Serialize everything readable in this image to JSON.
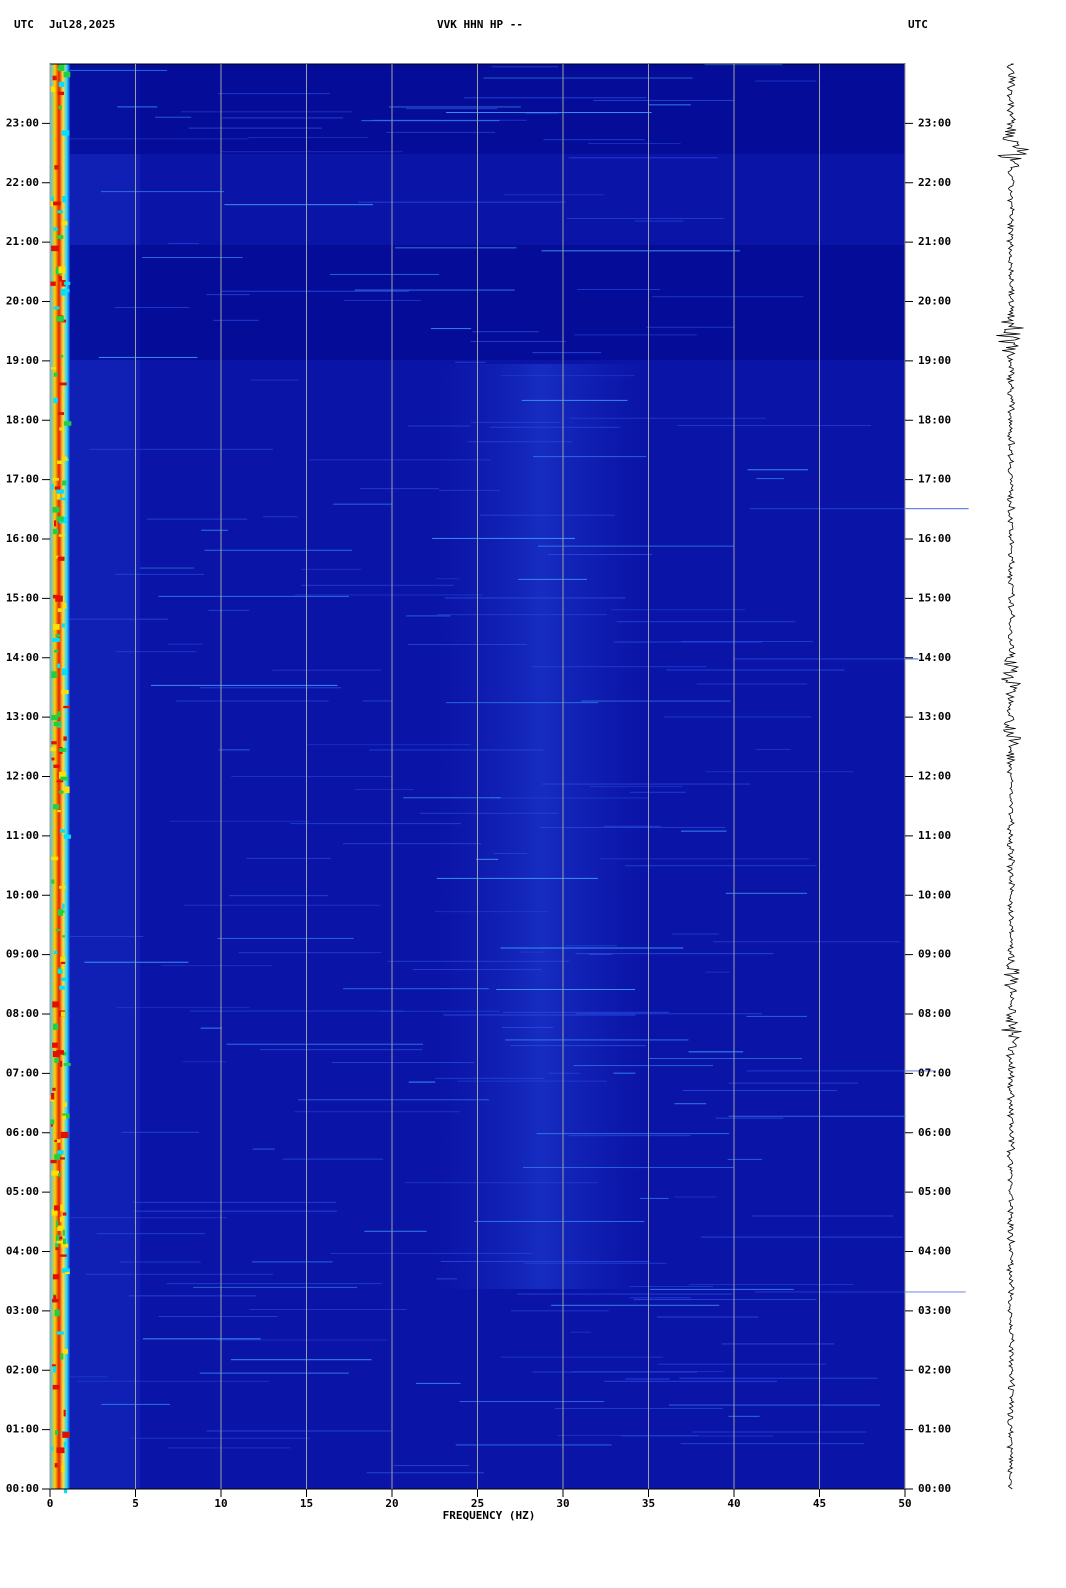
{
  "chart_data": {
    "type": "spectrogram",
    "title": "VVK HHN HP --",
    "left_header": "UTC",
    "date": "Jul28,2025",
    "right_header": "UTC",
    "xlabel": "FREQUENCY (HZ)",
    "xlim": [
      0,
      50
    ],
    "xticks": [
      0,
      5,
      10,
      15,
      20,
      25,
      30,
      35,
      40,
      45,
      50
    ],
    "ylim": [
      0,
      24
    ],
    "yticks": [
      {
        "value": 0,
        "label": "00:00"
      },
      {
        "value": 1,
        "label": "01:00"
      },
      {
        "value": 2,
        "label": "02:00"
      },
      {
        "value": 3,
        "label": "03:00"
      },
      {
        "value": 4,
        "label": "04:00"
      },
      {
        "value": 5,
        "label": "05:00"
      },
      {
        "value": 6,
        "label": "06:00"
      },
      {
        "value": 7,
        "label": "07:00"
      },
      {
        "value": 8,
        "label": "08:00"
      },
      {
        "value": 9,
        "label": "09:00"
      },
      {
        "value": 10,
        "label": "10:00"
      },
      {
        "value": 11,
        "label": "11:00"
      },
      {
        "value": 12,
        "label": "12:00"
      },
      {
        "value": 13,
        "label": "13:00"
      },
      {
        "value": 14,
        "label": "14:00"
      },
      {
        "value": 15,
        "label": "15:00"
      },
      {
        "value": 16,
        "label": "16:00"
      },
      {
        "value": 17,
        "label": "17:00"
      },
      {
        "value": 18,
        "label": "18:00"
      },
      {
        "value": 19,
        "label": "19:00"
      },
      {
        "value": 20,
        "label": "20:00"
      },
      {
        "value": 21,
        "label": "21:00"
      },
      {
        "value": 22,
        "label": "22:00"
      },
      {
        "value": 23,
        "label": "23:00"
      }
    ],
    "grid": true,
    "grid_color": "#a0a0a0",
    "color": "#0a14a6"
  }
}
